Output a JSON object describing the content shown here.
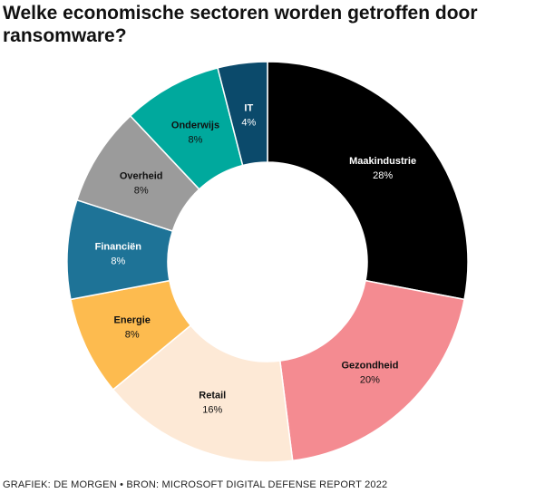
{
  "title": "Welke economische sectoren worden getroffen door ransomware?",
  "source": "GRAFIEK: DE MORGEN • BRON: MICROSOFT DIGITAL DEFENSE REPORT 2022",
  "chart_data": {
    "type": "pie",
    "variant": "donut",
    "legend": "none",
    "slices": [
      {
        "label": "Maakindustrie",
        "value": 28,
        "value_label": "28%",
        "color": "#000000",
        "text_color": "#ffffff"
      },
      {
        "label": "Gezondheid",
        "value": 20,
        "value_label": "20%",
        "color": "#f48b91",
        "text_color": "#111111"
      },
      {
        "label": "Retail",
        "value": 16,
        "value_label": "16%",
        "color": "#fde9d6",
        "text_color": "#111111"
      },
      {
        "label": "Energie",
        "value": 8,
        "value_label": "8%",
        "color": "#fdbb4f",
        "text_color": "#111111"
      },
      {
        "label": "Financiën",
        "value": 8,
        "value_label": "8%",
        "color": "#1e7397",
        "text_color": "#ffffff"
      },
      {
        "label": "Overheid",
        "value": 8,
        "value_label": "8%",
        "color": "#9b9b9b",
        "text_color": "#111111"
      },
      {
        "label": "Onderwijs",
        "value": 8,
        "value_label": "8%",
        "color": "#00a99d",
        "text_color": "#111111"
      },
      {
        "label": "IT",
        "value": 4,
        "value_label": "4%",
        "color": "#0b4a6b",
        "text_color": "#ffffff"
      }
    ]
  }
}
